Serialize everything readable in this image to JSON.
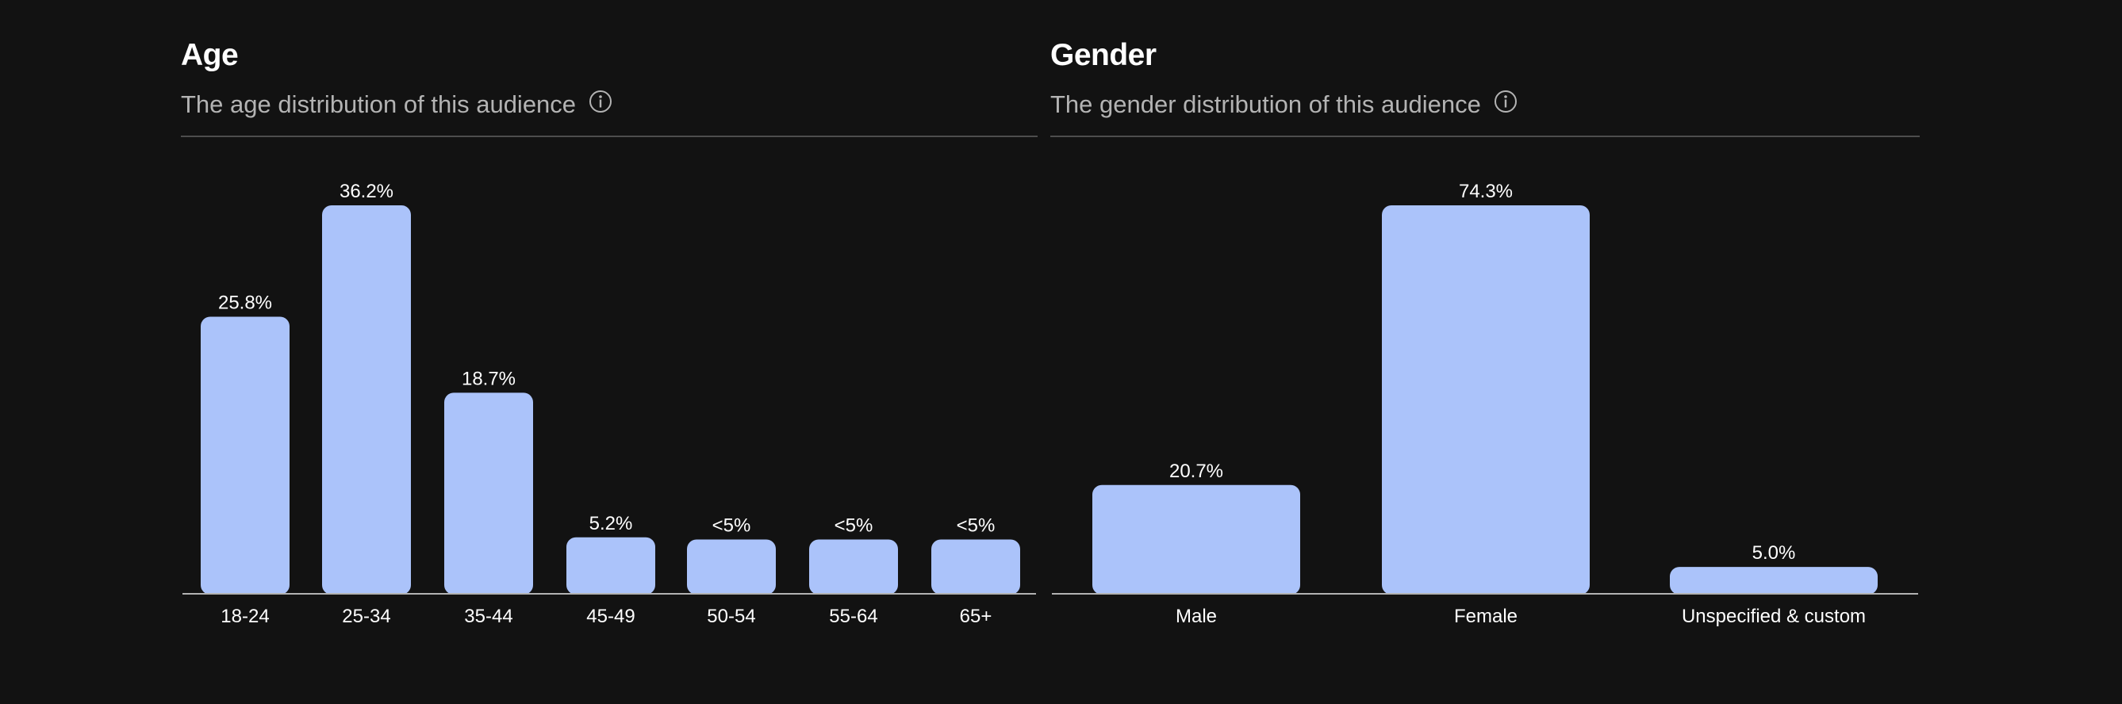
{
  "colors": {
    "background": "#121212",
    "bar": "#abc3fa",
    "title": "#ffffff",
    "subtitle": "#b3b3b3",
    "divider": "#4d4d4d"
  },
  "age": {
    "title": "Age",
    "subtitle": "The age distribution of this audience",
    "info_icon": "info-circle-icon"
  },
  "gender": {
    "title": "Gender",
    "subtitle": "The gender distribution of this audience",
    "info_icon": "info-circle-icon"
  },
  "chart_data": [
    {
      "type": "bar",
      "title": "Age",
      "subtitle": "The age distribution of this audience",
      "categories": [
        "18-24",
        "25-34",
        "35-44",
        "45-49",
        "50-54",
        "55-64",
        "65+"
      ],
      "values": [
        25.8,
        36.2,
        18.7,
        5.2,
        5.0,
        5.0,
        5.0
      ],
      "labels": [
        "25.8%",
        "36.2%",
        "18.7%",
        "5.2%",
        "<5%",
        "<5%",
        "<5%"
      ],
      "ylim": [
        0,
        36.2
      ],
      "grid": false,
      "legend": "none"
    },
    {
      "type": "bar",
      "title": "Gender",
      "subtitle": "The gender distribution of this audience",
      "categories": [
        "Male",
        "Female",
        "Unspecified & custom"
      ],
      "values": [
        20.7,
        74.3,
        5.0
      ],
      "labels": [
        "20.7%",
        "74.3%",
        "5.0%"
      ],
      "ylim": [
        0,
        74.3
      ],
      "grid": false,
      "legend": "none"
    }
  ]
}
